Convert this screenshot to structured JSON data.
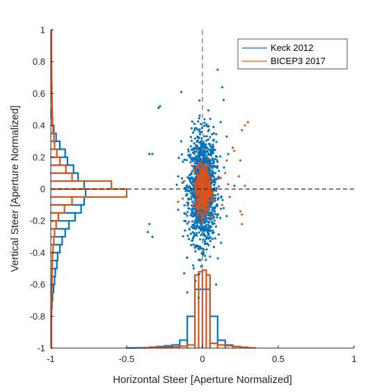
{
  "chart_data": {
    "type": "scatter",
    "xlabel": "Horizontal Steer [Aperture Normalized]",
    "ylabel": "Vertical Steer [Aperture Normalized]",
    "xlim": [
      -1,
      1
    ],
    "ylim": [
      -1,
      1
    ],
    "xticks": [
      "-1",
      "-0.5",
      "0",
      "0.5",
      "1"
    ],
    "yticks": [
      "-1",
      "-0.8",
      "-0.6",
      "-0.4",
      "-0.2",
      "0",
      "0.2",
      "0.4",
      "0.6",
      "0.8",
      "1"
    ],
    "grid": false,
    "legend_position": "top-right",
    "reference_lines": [
      {
        "orientation": "vertical",
        "value": 0,
        "style": "dashed",
        "color": "#7f7f7f"
      },
      {
        "orientation": "horizontal",
        "value": 0,
        "style": "dashed",
        "color": "#000000"
      }
    ],
    "series": [
      {
        "name": "Keck 2012",
        "color": "#0072bd",
        "scatter_center": [
          0.0,
          0.0
        ],
        "scatter_spread": [
          0.045,
          0.17
        ],
        "scatter_count": 1500,
        "outliers": [
          [
            -0.28,
            0.52
          ],
          [
            -0.29,
            0.51
          ],
          [
            -0.14,
            0.61
          ],
          [
            0.1,
            0.75
          ],
          [
            0.13,
            0.64
          ],
          [
            0.14,
            0.56
          ],
          [
            -0.35,
            0.22
          ],
          [
            -0.33,
            0.22
          ],
          [
            -0.35,
            -0.22
          ],
          [
            -0.33,
            -0.3
          ],
          [
            -0.36,
            -0.27
          ],
          [
            -0.1,
            -0.43
          ],
          [
            -0.12,
            -0.53
          ],
          [
            -0.1,
            -0.65
          ],
          [
            0.09,
            -0.6
          ],
          [
            0.21,
            0.02
          ],
          [
            0.16,
            0.33
          ],
          [
            -0.16,
            -0.13
          ],
          [
            0.16,
            -0.17
          ],
          [
            -0.14,
            0.3
          ],
          [
            0.14,
            -0.12
          ],
          [
            -0.16,
            0.08
          ],
          [
            0.12,
            0.42
          ],
          [
            0.17,
            0.22
          ]
        ],
        "x_hist": {
          "bin_edges": [
            -0.5,
            -0.45,
            -0.4,
            -0.35,
            -0.3,
            -0.25,
            -0.2,
            -0.15,
            -0.1,
            -0.05,
            0,
            0.05,
            0.1,
            0.15,
            0.2,
            0.25,
            0.3
          ],
          "heights": [
            0.001,
            0.002,
            0.003,
            0.006,
            0.01,
            0.015,
            0.02,
            0.05,
            0.2,
            0.37,
            0.37,
            0.2,
            0.05,
            0.02,
            0.01,
            0.005
          ]
        },
        "y_hist": {
          "bin_edges": [
            -0.8,
            -0.75,
            -0.7,
            -0.65,
            -0.6,
            -0.55,
            -0.5,
            -0.45,
            -0.4,
            -0.35,
            -0.3,
            -0.25,
            -0.2,
            -0.15,
            -0.1,
            -0.05,
            0,
            0.05,
            0.1,
            0.15,
            0.2,
            0.25,
            0.3,
            0.35,
            0.4,
            0.45,
            0.5
          ],
          "heights": [
            0.005,
            0.008,
            0.012,
            0.018,
            0.025,
            0.03,
            0.04,
            0.045,
            0.06,
            0.075,
            0.095,
            0.12,
            0.16,
            0.2,
            0.22,
            0.23,
            0.22,
            0.18,
            0.15,
            0.11,
            0.095,
            0.06,
            0.035,
            0.02,
            0.01,
            0.005
          ]
        }
      },
      {
        "name": "BICEP3 2017",
        "color": "#d95319",
        "scatter_center": [
          0.005,
          0.0
        ],
        "scatter_spread": [
          0.022,
          0.07
        ],
        "scatter_count": 700,
        "outliers": [
          [
            0.28,
            0.4
          ],
          [
            0.3,
            0.42
          ],
          [
            0.26,
            0.37
          ],
          [
            0.21,
            0.24
          ],
          [
            0.2,
            0.26
          ],
          [
            0.25,
            0.18
          ],
          [
            0.24,
            0.08
          ],
          [
            0.28,
            0.02
          ],
          [
            0.25,
            -0.14
          ],
          [
            0.26,
            -0.16
          ],
          [
            0.26,
            -0.22
          ],
          [
            -0.12,
            0.05
          ],
          [
            -0.16,
            -0.08
          ],
          [
            0.18,
            -0.05
          ],
          [
            0.15,
            0.1
          ],
          [
            0.16,
            0.18
          ],
          [
            0.13,
            -0.1
          ],
          [
            -0.13,
            -0.06
          ],
          [
            0.12,
            0.07
          ],
          [
            0.17,
            0.03
          ]
        ],
        "x_hist": {
          "bin_edges": [
            -0.4,
            -0.35,
            -0.3,
            -0.25,
            -0.2,
            -0.15,
            -0.1,
            -0.05,
            -0.025,
            0,
            0.025,
            0.05,
            0.1,
            0.15,
            0.2,
            0.25,
            0.3,
            0.35
          ],
          "heights": [
            0.002,
            0.004,
            0.005,
            0.006,
            0.008,
            0.012,
            0.02,
            0.46,
            0.48,
            0.49,
            0.46,
            0.03,
            0.02,
            0.015,
            0.01,
            0.005,
            0.002
          ]
        },
        "y_hist": {
          "bin_edges": [
            -1,
            -0.95,
            -0.9,
            -0.85,
            -0.8,
            -0.75,
            -0.7,
            -0.65,
            -0.6,
            -0.55,
            -0.5,
            -0.45,
            -0.4,
            -0.35,
            -0.3,
            -0.25,
            -0.2,
            -0.15,
            -0.1,
            -0.05,
            0,
            0.05,
            0.1,
            0.15,
            0.2,
            0.25,
            0.3,
            0.35,
            0.4,
            0.45,
            0.5,
            0.55,
            0.6,
            0.65,
            0.7,
            0.75,
            0.8,
            0.85,
            0.9,
            0.95,
            1
          ],
          "heights": [
            0.005,
            0.005,
            0.005,
            0.005,
            0.005,
            0.006,
            0.006,
            0.007,
            0.008,
            0.009,
            0.01,
            0.012,
            0.015,
            0.02,
            0.025,
            0.035,
            0.05,
            0.09,
            0.14,
            0.5,
            0.4,
            0.14,
            0.1,
            0.06,
            0.04,
            0.025,
            0.02,
            0.015,
            0.012,
            0.01,
            0.009,
            0.008,
            0.007,
            0.006,
            0.006,
            0.005,
            0.005,
            0.005,
            0.005,
            0.005
          ]
        }
      }
    ]
  }
}
